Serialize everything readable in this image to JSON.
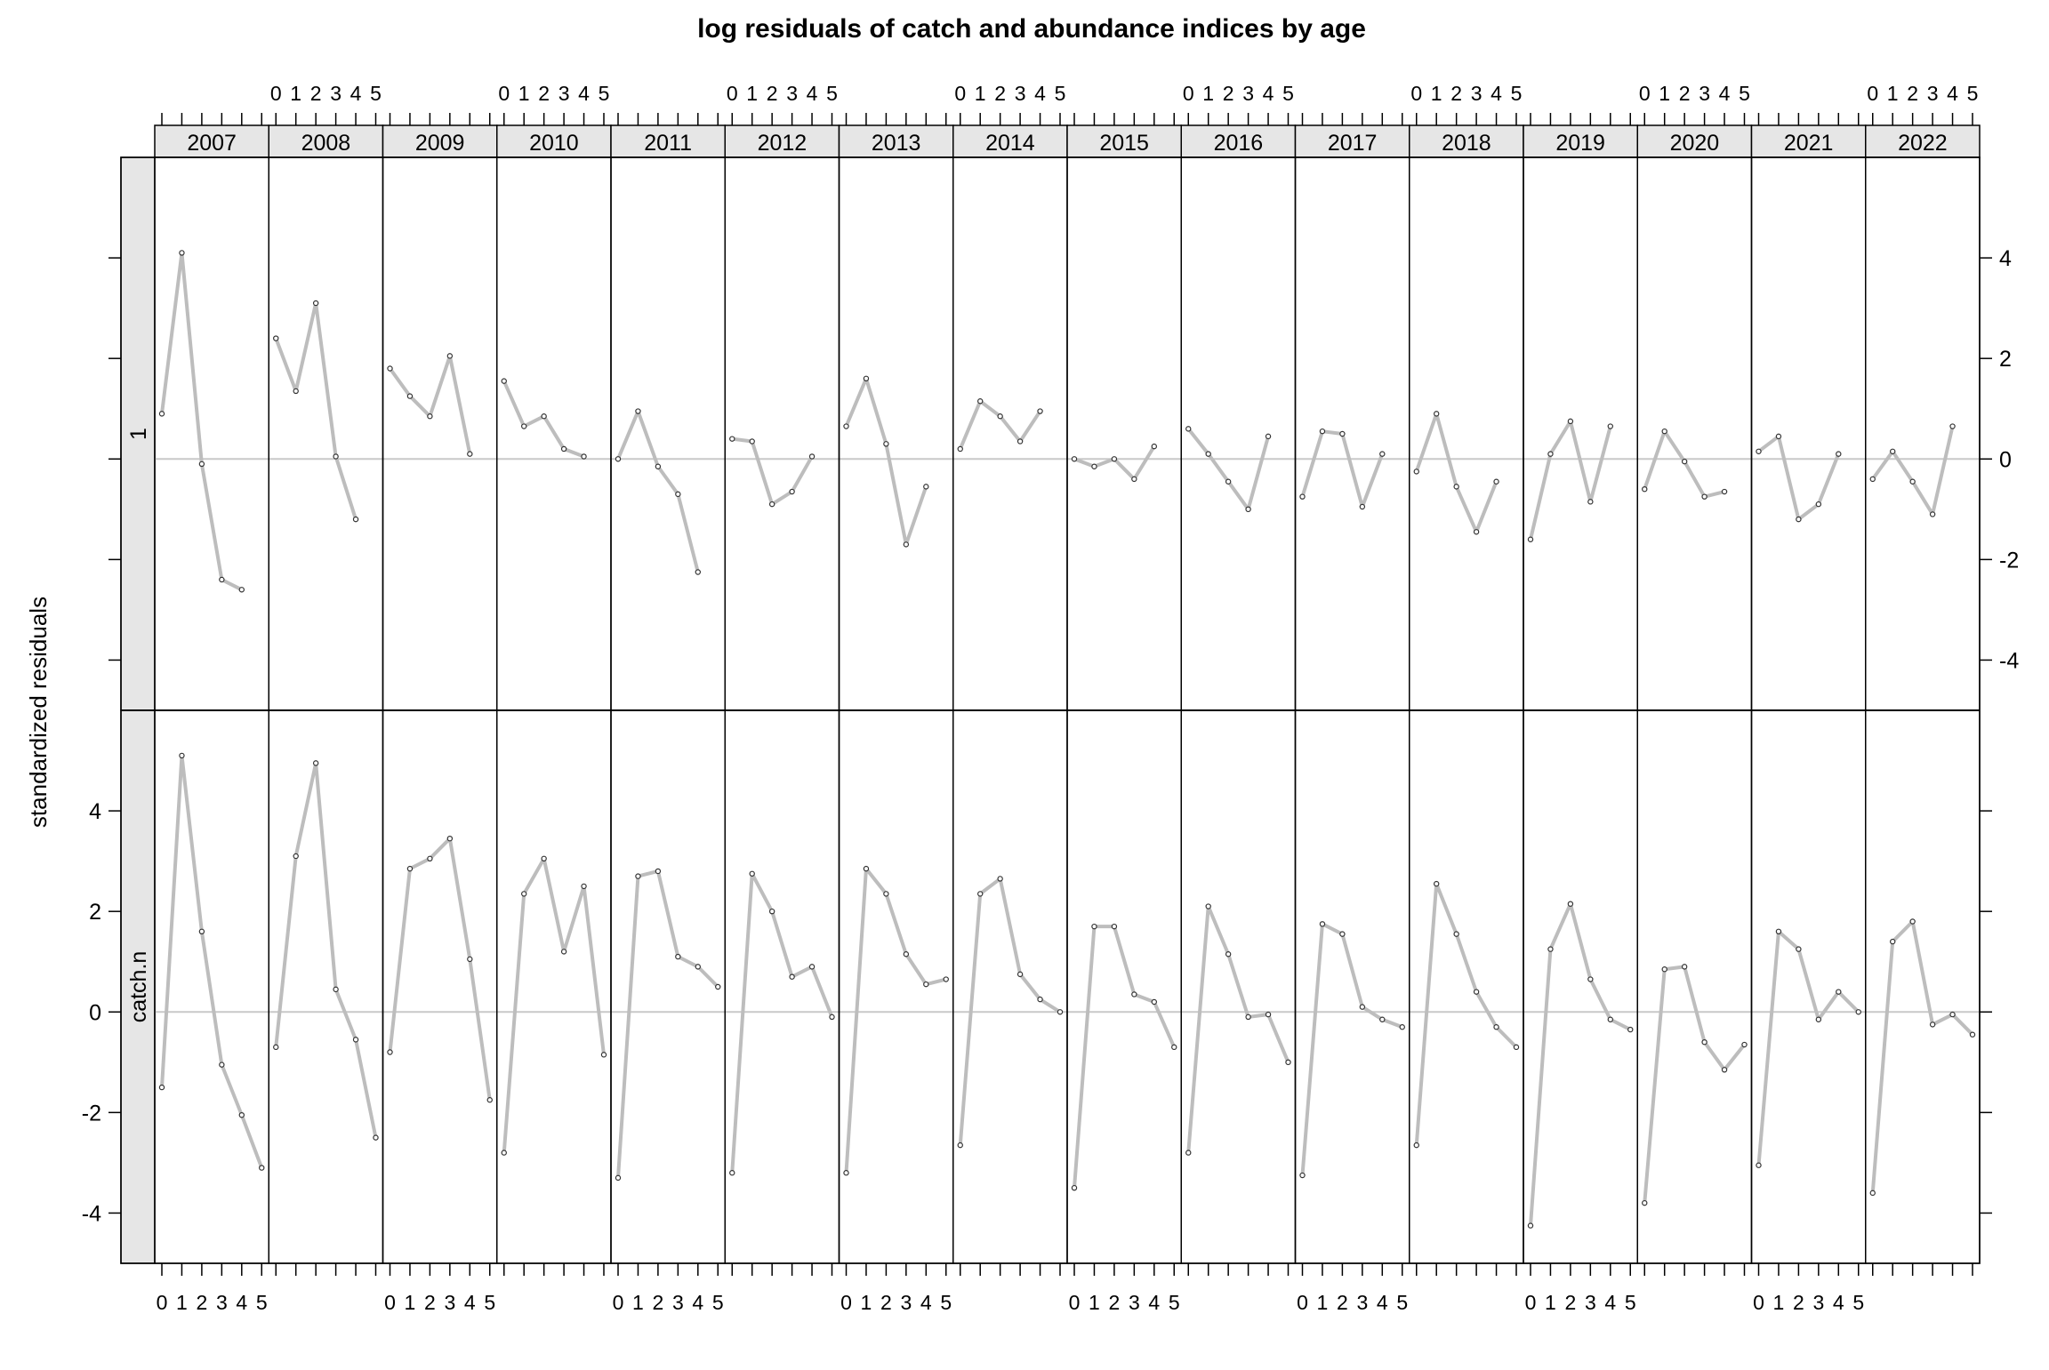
{
  "chart_data": {
    "type": "line",
    "title": "log residuals of catch and abundance indices by age",
    "ylabel": "standardized residuals",
    "xlabel": "",
    "panel_years": [
      "2007",
      "2008",
      "2009",
      "2010",
      "2011",
      "2012",
      "2013",
      "2014",
      "2015",
      "2016",
      "2017",
      "2018",
      "2019",
      "2020",
      "2021",
      "2022"
    ],
    "age_ticks": [
      "0",
      "1",
      "2",
      "3",
      "4",
      "5"
    ],
    "ylim": [
      -5,
      6
    ],
    "y_ticks": [
      -4,
      -2,
      0,
      2,
      4
    ],
    "reference_line": 0,
    "line_color": "#bdbdbd",
    "strip_color": "#e6e6e6",
    "rows": [
      {
        "name": "1",
        "series": [
          {
            "year": "2007",
            "values": [
              0.9,
              4.1,
              -0.1,
              -2.4,
              -2.6
            ]
          },
          {
            "year": "2008",
            "values": [
              2.4,
              1.35,
              3.1,
              0.05,
              -1.2
            ]
          },
          {
            "year": "2009",
            "values": [
              1.8,
              1.25,
              0.85,
              2.05,
              0.1
            ]
          },
          {
            "year": "2010",
            "values": [
              1.55,
              0.65,
              0.85,
              0.2,
              0.05
            ]
          },
          {
            "year": "2011",
            "values": [
              0.0,
              0.95,
              -0.15,
              -0.7,
              -2.25
            ]
          },
          {
            "year": "2012",
            "values": [
              0.4,
              0.35,
              -0.9,
              -0.65,
              0.05
            ]
          },
          {
            "year": "2013",
            "values": [
              0.65,
              1.6,
              0.3,
              -1.7,
              -0.55
            ]
          },
          {
            "year": "2014",
            "values": [
              0.2,
              1.15,
              0.85,
              0.35,
              0.95
            ]
          },
          {
            "year": "2015",
            "values": [
              0.0,
              -0.15,
              0.0,
              -0.4,
              0.25
            ]
          },
          {
            "year": "2016",
            "values": [
              0.6,
              0.1,
              -0.45,
              -1.0,
              0.45
            ]
          },
          {
            "year": "2017",
            "values": [
              -0.75,
              0.55,
              0.5,
              -0.95,
              0.1
            ]
          },
          {
            "year": "2018",
            "values": [
              -0.25,
              0.9,
              -0.55,
              -1.45,
              -0.45
            ]
          },
          {
            "year": "2019",
            "values": [
              -1.6,
              0.1,
              0.75,
              -0.85,
              0.65
            ]
          },
          {
            "year": "2020",
            "values": [
              -0.6,
              0.55,
              -0.05,
              -0.75,
              -0.65
            ]
          },
          {
            "year": "2021",
            "values": [
              0.15,
              0.45,
              -1.2,
              -0.9,
              0.1
            ]
          },
          {
            "year": "2022",
            "values": [
              -0.4,
              0.15,
              -0.45,
              -1.1,
              0.65
            ]
          }
        ]
      },
      {
        "name": "catch.n",
        "series": [
          {
            "year": "2007",
            "values": [
              -1.5,
              5.1,
              1.6,
              -1.05,
              -2.05,
              -3.1
            ]
          },
          {
            "year": "2008",
            "values": [
              -0.7,
              3.1,
              4.95,
              0.45,
              -0.55,
              -2.5
            ]
          },
          {
            "year": "2009",
            "values": [
              -0.8,
              2.85,
              3.05,
              3.45,
              1.05,
              -1.75
            ]
          },
          {
            "year": "2010",
            "values": [
              -2.8,
              2.35,
              3.05,
              1.2,
              2.5,
              -0.85
            ]
          },
          {
            "year": "2011",
            "values": [
              -3.3,
              2.7,
              2.8,
              1.1,
              0.9,
              0.5
            ]
          },
          {
            "year": "2012",
            "values": [
              -3.2,
              2.75,
              2.0,
              0.7,
              0.9,
              -0.1
            ]
          },
          {
            "year": "2013",
            "values": [
              -3.2,
              2.85,
              2.35,
              1.15,
              0.55,
              0.65
            ]
          },
          {
            "year": "2014",
            "values": [
              -2.65,
              2.35,
              2.65,
              0.75,
              0.25,
              0.0
            ]
          },
          {
            "year": "2015",
            "values": [
              -3.5,
              1.7,
              1.7,
              0.35,
              0.2,
              -0.7
            ]
          },
          {
            "year": "2016",
            "values": [
              -2.8,
              2.1,
              1.15,
              -0.1,
              -0.05,
              -1.0
            ]
          },
          {
            "year": "2017",
            "values": [
              -3.25,
              1.75,
              1.55,
              0.1,
              -0.15,
              -0.3
            ]
          },
          {
            "year": "2018",
            "values": [
              -2.65,
              2.55,
              1.55,
              0.4,
              -0.3,
              -0.7
            ]
          },
          {
            "year": "2019",
            "values": [
              -4.25,
              1.25,
              2.15,
              0.65,
              -0.15,
              -0.35
            ]
          },
          {
            "year": "2020",
            "values": [
              -3.8,
              0.85,
              0.9,
              -0.6,
              -1.15,
              -0.65
            ]
          },
          {
            "year": "2021",
            "values": [
              -3.05,
              1.6,
              1.25,
              -0.15,
              0.4,
              0.0
            ]
          },
          {
            "year": "2022",
            "values": [
              -3.6,
              1.4,
              1.8,
              -0.25,
              -0.05,
              -0.45
            ]
          }
        ]
      }
    ]
  }
}
